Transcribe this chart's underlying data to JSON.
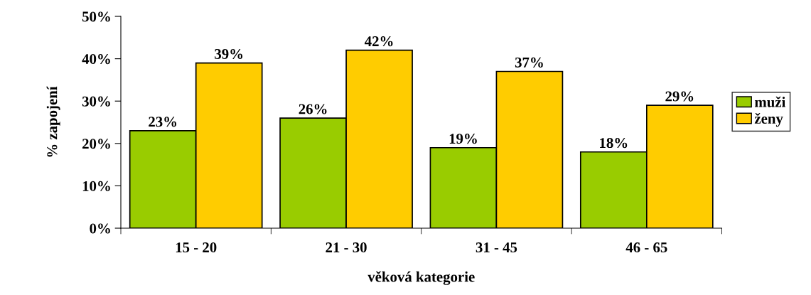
{
  "chart_data": {
    "type": "bar",
    "xlabel": "věková kategorie",
    "ylabel": "% zapojení",
    "categories": [
      "15 - 20",
      "21 - 30",
      "31 - 45",
      "46 - 65"
    ],
    "series": [
      {
        "name": "muži",
        "color": "#99cc00",
        "values": [
          23,
          26,
          19,
          18
        ],
        "value_labels": [
          "23%",
          "26%",
          "19%",
          "18%"
        ]
      },
      {
        "name": "ženy",
        "color": "#ffcc00",
        "values": [
          39,
          42,
          37,
          29
        ],
        "value_labels": [
          "39%",
          "42%",
          "37%",
          "29%"
        ]
      }
    ],
    "ylim": [
      0,
      50
    ],
    "yticks": [
      {
        "value": 0,
        "label": "0%"
      },
      {
        "value": 10,
        "label": "10%"
      },
      {
        "value": 20,
        "label": "20%"
      },
      {
        "value": 30,
        "label": "30%"
      },
      {
        "value": 40,
        "label": "40%"
      },
      {
        "value": 50,
        "label": "50%"
      }
    ],
    "legend": "right",
    "grid": false
  }
}
